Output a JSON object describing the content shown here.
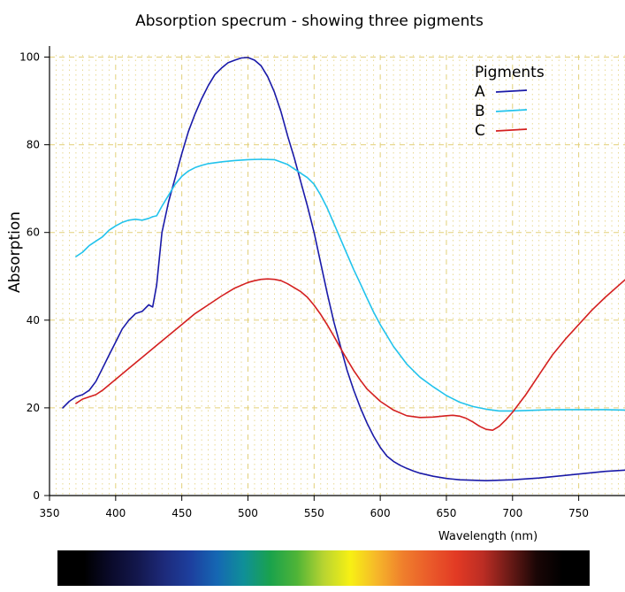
{
  "chart_data": {
    "type": "line",
    "title": "Absorption specrum - showing three pigments",
    "xlabel": "Wavelength (nm)",
    "ylabel": "Absorption",
    "xlim": [
      350,
      785
    ],
    "ylim": [
      0,
      100
    ],
    "xticks": [
      350,
      400,
      450,
      500,
      550,
      600,
      650,
      700,
      750
    ],
    "yticks": [
      0,
      20,
      40,
      60,
      80,
      100
    ],
    "grid": true,
    "legend": {
      "title": "Pigments",
      "position": "top-right"
    },
    "series": [
      {
        "name": "A",
        "color": "#1a1aa8",
        "x": [
          360,
          365,
          370,
          375,
          380,
          385,
          390,
          395,
          400,
          405,
          410,
          415,
          420,
          425,
          428,
          431,
          435,
          440,
          445,
          450,
          455,
          460,
          465,
          470,
          475,
          480,
          485,
          490,
          495,
          500,
          505,
          510,
          515,
          520,
          525,
          530,
          535,
          540,
          545,
          550,
          555,
          560,
          565,
          570,
          575,
          580,
          585,
          590,
          595,
          600,
          605,
          610,
          615,
          620,
          625,
          630,
          640,
          650,
          660,
          670,
          680,
          690,
          700,
          710,
          720,
          730,
          740,
          750,
          760,
          770,
          785
        ],
        "y": [
          20,
          21.5,
          22.5,
          23,
          24,
          26,
          29,
          32,
          35,
          38,
          40,
          41.5,
          42,
          43.5,
          43,
          48,
          60,
          67,
          72.5,
          78,
          83,
          87,
          90.5,
          93.5,
          96,
          97.5,
          98.7,
          99.3,
          99.8,
          99.9,
          99.3,
          98,
          95.5,
          92,
          87.5,
          82,
          77,
          71.5,
          66,
          60,
          53,
          46,
          39.5,
          34,
          28.5,
          24,
          20,
          16.5,
          13.5,
          11,
          9,
          7.8,
          6.9,
          6.2,
          5.6,
          5.1,
          4.4,
          3.9,
          3.6,
          3.5,
          3.4,
          3.5,
          3.6,
          3.8,
          4.0,
          4.3,
          4.6,
          4.9,
          5.2,
          5.5,
          5.8
        ]
      },
      {
        "name": "B",
        "color": "#22c3ec",
        "x": [
          370,
          375,
          380,
          385,
          390,
          395,
          400,
          405,
          410,
          415,
          420,
          425,
          428,
          431,
          435,
          440,
          445,
          450,
          455,
          460,
          465,
          470,
          480,
          490,
          500,
          510,
          520,
          530,
          540,
          545,
          550,
          555,
          560,
          565,
          570,
          575,
          580,
          585,
          590,
          595,
          600,
          605,
          610,
          620,
          630,
          640,
          650,
          660,
          670,
          680,
          690,
          700,
          710,
          720,
          730,
          740,
          750,
          760,
          770,
          785
        ],
        "y": [
          54.5,
          55.5,
          57,
          58,
          59,
          60.5,
          61.5,
          62.3,
          62.8,
          63,
          62.8,
          63.2,
          63.6,
          63.8,
          66,
          68.5,
          71,
          72.8,
          74,
          74.8,
          75.3,
          75.7,
          76.1,
          76.4,
          76.6,
          76.7,
          76.6,
          75.5,
          73.5,
          72.5,
          71,
          68.5,
          65.5,
          62,
          58.5,
          55,
          51.5,
          48.3,
          45,
          41.8,
          39,
          36.5,
          34,
          30,
          27,
          24.8,
          22.8,
          21.3,
          20.3,
          19.7,
          19.3,
          19.3,
          19.4,
          19.5,
          19.6,
          19.6,
          19.6,
          19.6,
          19.6,
          19.5
        ]
      },
      {
        "name": "C",
        "color": "#d42020",
        "x": [
          370,
          375,
          380,
          385,
          390,
          400,
          410,
          420,
          430,
          440,
          450,
          460,
          470,
          480,
          490,
          500,
          505,
          510,
          515,
          520,
          525,
          530,
          540,
          545,
          550,
          555,
          560,
          565,
          570,
          575,
          580,
          585,
          590,
          600,
          610,
          620,
          630,
          640,
          650,
          655,
          660,
          665,
          670,
          675,
          680,
          685,
          690,
          695,
          700,
          710,
          720,
          730,
          740,
          750,
          760,
          770,
          785
        ],
        "y": [
          21,
          22,
          22.5,
          23,
          24,
          26.5,
          29,
          31.5,
          34,
          36.5,
          39,
          41.5,
          43.5,
          45.5,
          47.3,
          48.6,
          49,
          49.3,
          49.4,
          49.3,
          49,
          48.3,
          46.5,
          45.2,
          43.4,
          41.3,
          38.9,
          36.3,
          33.6,
          31,
          28.5,
          26.3,
          24.3,
          21.5,
          19.5,
          18.2,
          17.8,
          17.9,
          18.2,
          18.3,
          18.1,
          17.6,
          16.8,
          15.8,
          15.1,
          14.9,
          15.8,
          17.3,
          19,
          23,
          27.5,
          32,
          35.7,
          39,
          42.3,
          45.2,
          49.2
        ]
      }
    ]
  },
  "spectrum_bar": {
    "colors": [
      "#000000",
      "#000000",
      "#0a0a2a",
      "#13174c",
      "#1d2a7a",
      "#1d3f9e",
      "#1567b3",
      "#0f8f98",
      "#1aa24c",
      "#4fb437",
      "#b8d431",
      "#f7f014",
      "#f6b72a",
      "#ef7e2c",
      "#ea5a2a",
      "#e23a24",
      "#bb2d24",
      "#6a1a16",
      "#1a0606",
      "#000000",
      "#000000"
    ]
  }
}
